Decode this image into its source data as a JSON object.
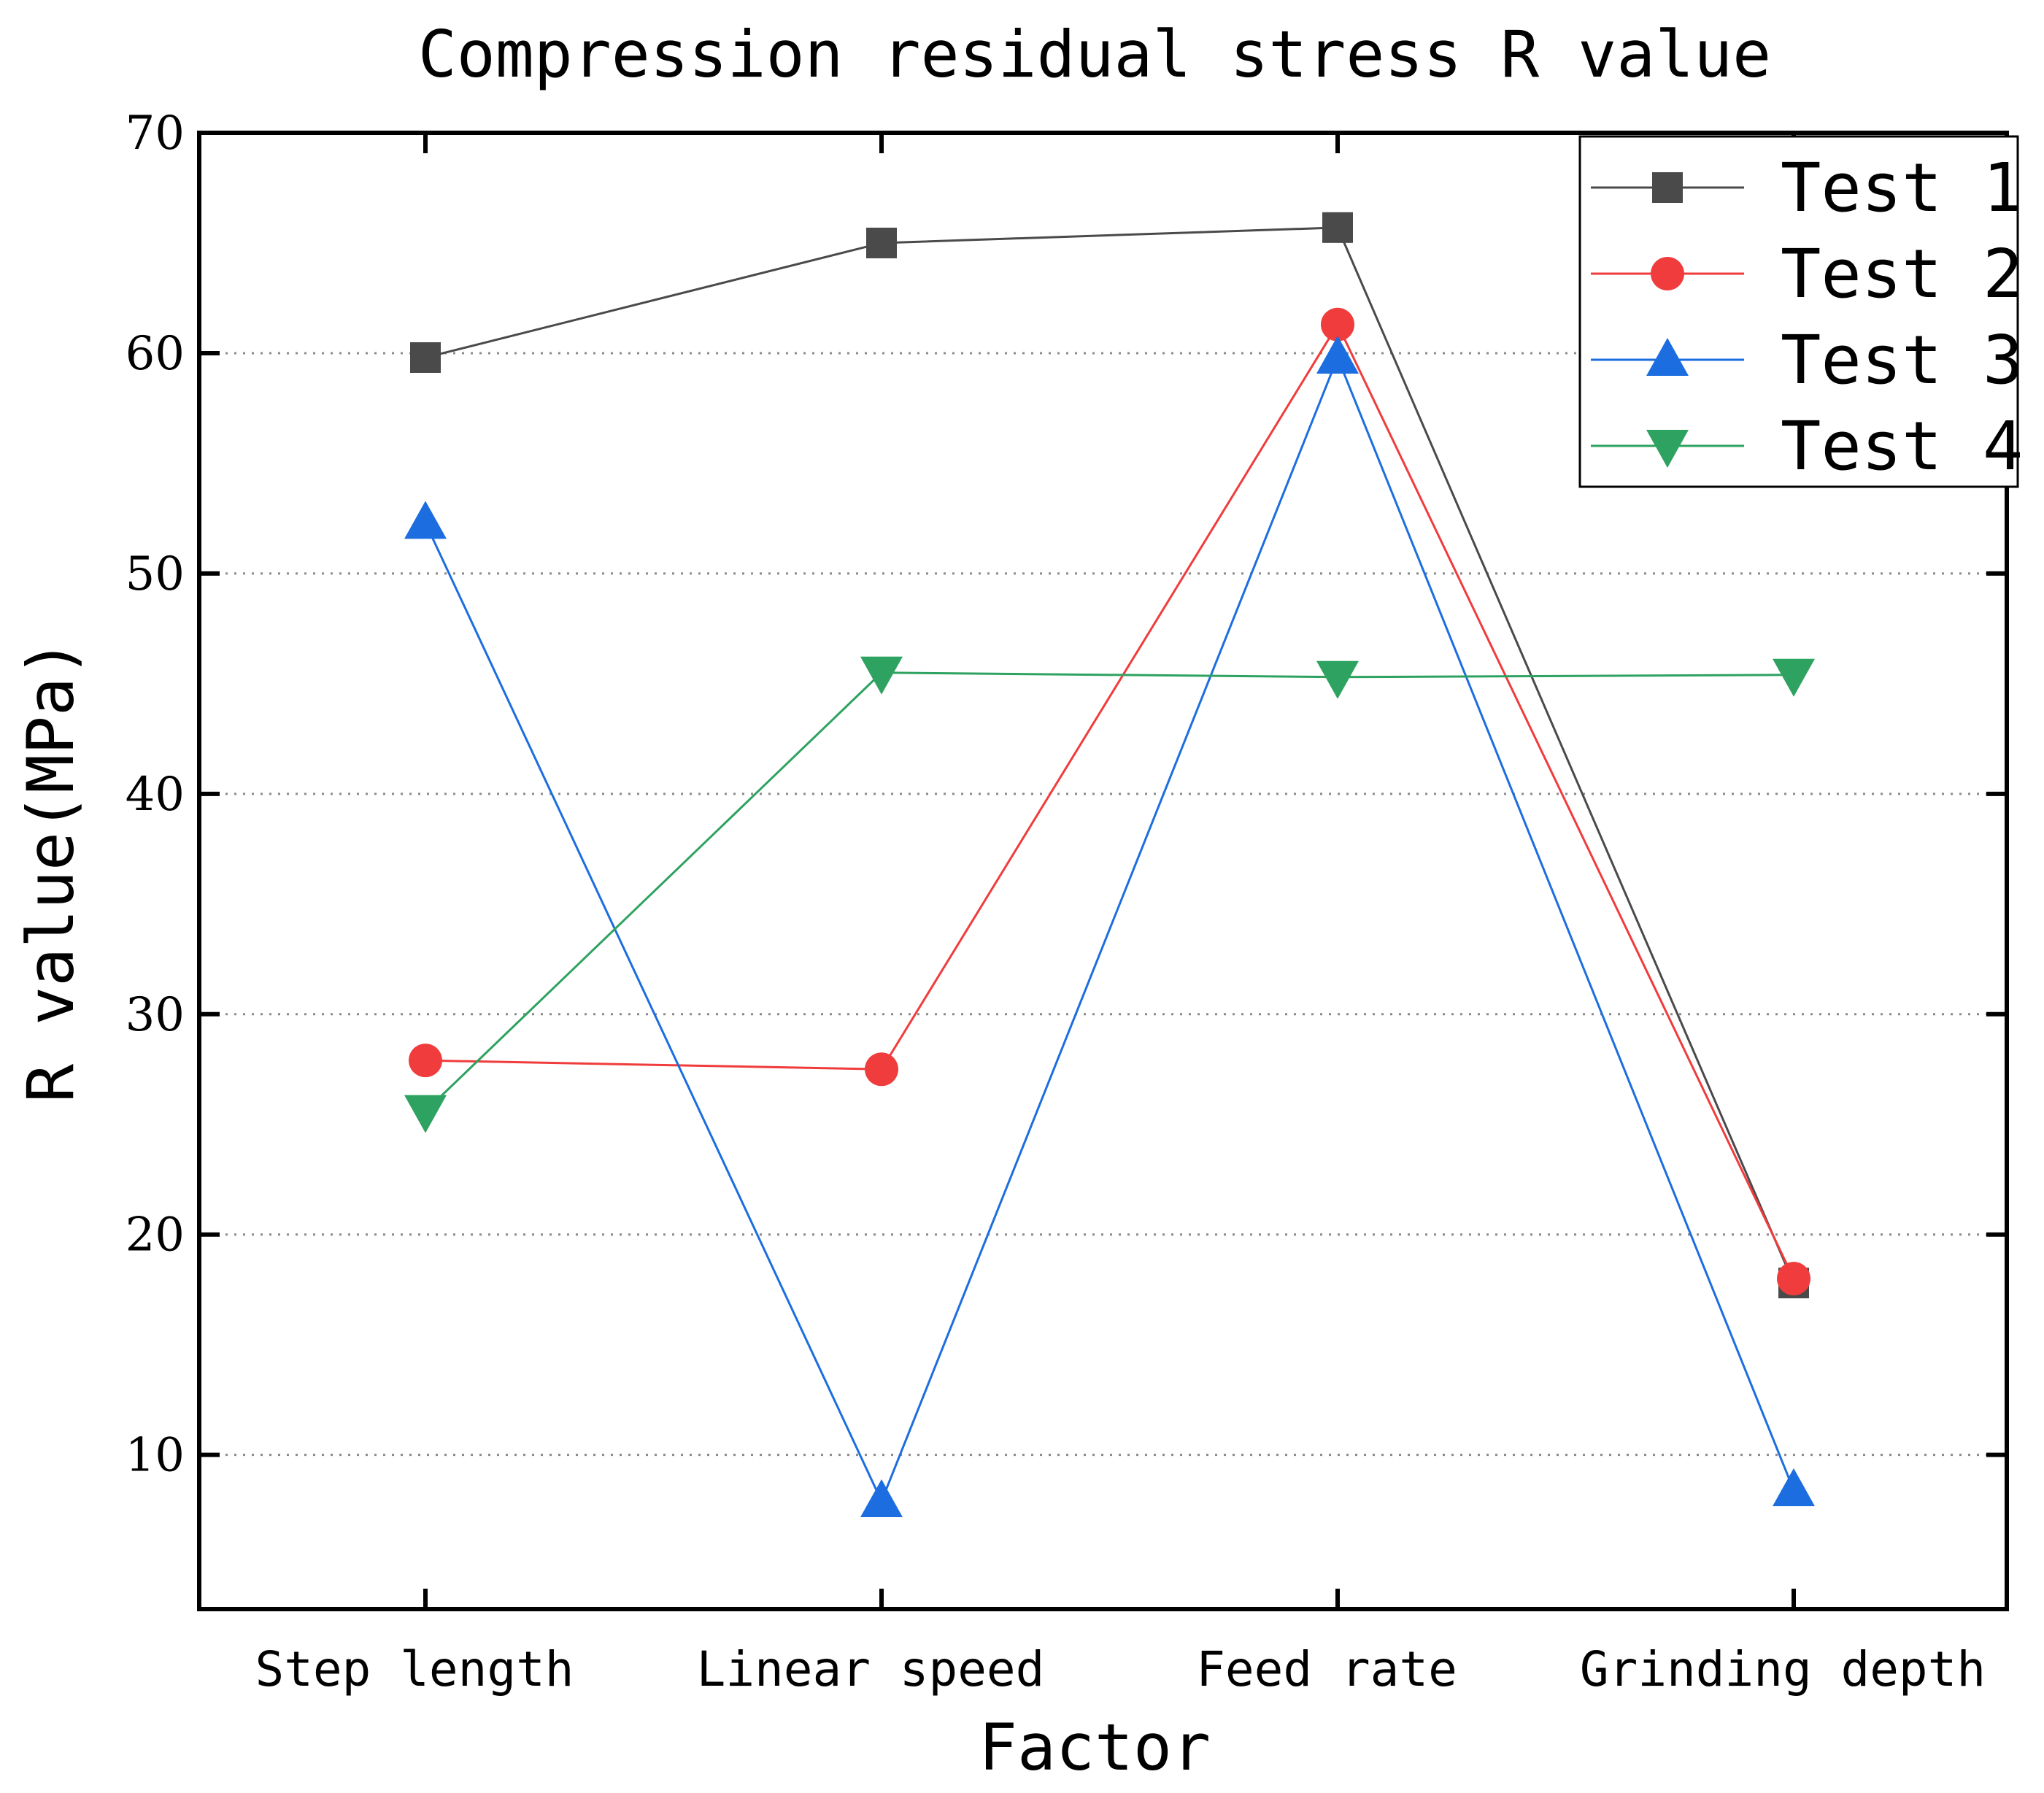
{
  "chart_data": {
    "type": "line",
    "title": "Compression residual stress R value",
    "xlabel": "Factor",
    "ylabel": "R value(MPa)",
    "categories": [
      "Step length",
      "Linear speed",
      "Feed rate",
      "Grinding depth"
    ],
    "ylim": [
      3,
      70
    ],
    "yticks": [
      10,
      20,
      30,
      40,
      50,
      60,
      70
    ],
    "grid": "horizontal-dotted",
    "legend_position": "top-right",
    "series": [
      {
        "name": "Test 1",
        "marker": "square",
        "color": "#4a4a4a",
        "values": [
          59.8,
          65.0,
          65.7,
          17.8
        ]
      },
      {
        "name": "Test 2",
        "marker": "circle",
        "color": "#f03c3c",
        "values": [
          27.9,
          27.5,
          61.3,
          18.0
        ]
      },
      {
        "name": "Test 3",
        "marker": "triangle-up",
        "color": "#1c6ee0",
        "values": [
          52.3,
          7.9,
          59.8,
          8.4
        ]
      },
      {
        "name": "Test 4",
        "marker": "triangle-down",
        "color": "#2ea260",
        "values": [
          25.6,
          45.5,
          45.3,
          45.4
        ]
      }
    ]
  }
}
